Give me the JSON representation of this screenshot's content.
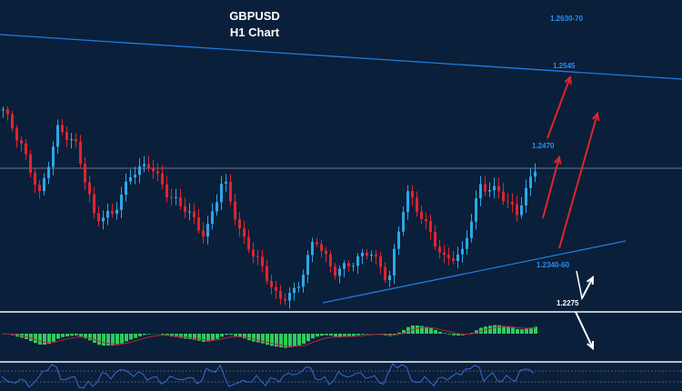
{
  "chart_data": {
    "type": "candlestick",
    "title": "GBPUSD",
    "subtitle": "H1 Chart",
    "price_waypoints": [
      1.2554,
      1.2502,
      1.2431,
      1.2528,
      1.2502,
      1.2398,
      1.2405,
      1.2463,
      1.2476,
      1.2431,
      1.2411,
      1.2372,
      1.2457,
      1.2372,
      1.2334,
      1.2282,
      1.2295,
      1.2372,
      1.2321,
      1.2334,
      1.2353,
      1.2308,
      1.2437,
      1.2392,
      1.234,
      1.2346,
      1.2444,
      1.2437,
      1.2405,
      1.247
    ],
    "levels": {
      "target_high": "1.2630-70",
      "resistance": "1.2545",
      "pivot": "1.2470",
      "support": "1.2340-60",
      "low": "1.2275"
    },
    "colors": {
      "bg": "#0a1f3a",
      "up": "#2aa8e8",
      "down": "#e0242e",
      "trend": "#1e7de0",
      "arrow": "#e0242e",
      "hist": "#2ecc5a"
    }
  }
}
